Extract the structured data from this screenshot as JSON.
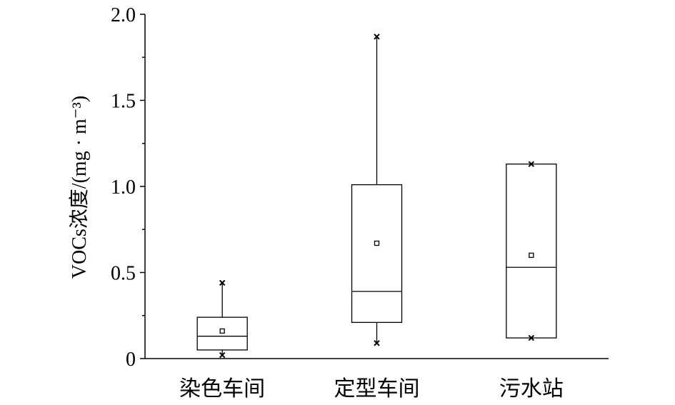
{
  "chart_data": {
    "type": "box",
    "categories": [
      "染色车间",
      "定型车间",
      "污水站"
    ],
    "boxes": [
      {
        "min": 0.02,
        "q1": 0.05,
        "median": 0.13,
        "q3": 0.24,
        "max": 0.44,
        "mean": 0.16
      },
      {
        "min": 0.09,
        "q1": 0.21,
        "median": 0.39,
        "q3": 1.01,
        "max": 1.87,
        "mean": 0.67
      },
      {
        "min": 0.12,
        "q1": 0.12,
        "median": 0.53,
        "q3": 1.13,
        "max": 1.13,
        "mean": 0.6
      }
    ],
    "ylabel": "VOCs浓度/(mg · m⁻³)",
    "ylim": [
      0,
      2.0
    ],
    "y_ticks": [
      0,
      0.5,
      1.0,
      1.5,
      2.0
    ],
    "y_tick_labels": [
      "0",
      "0.5",
      "1.0",
      "1.5",
      "2.0"
    ],
    "y_minor_ticks": [
      0.25,
      0.75,
      1.25,
      1.75
    ],
    "grid": false,
    "markers": {
      "mean": "hollow-square-icon",
      "extreme": "cross-icon"
    },
    "colors": {
      "line": "#000000",
      "background": "#ffffff"
    }
  }
}
